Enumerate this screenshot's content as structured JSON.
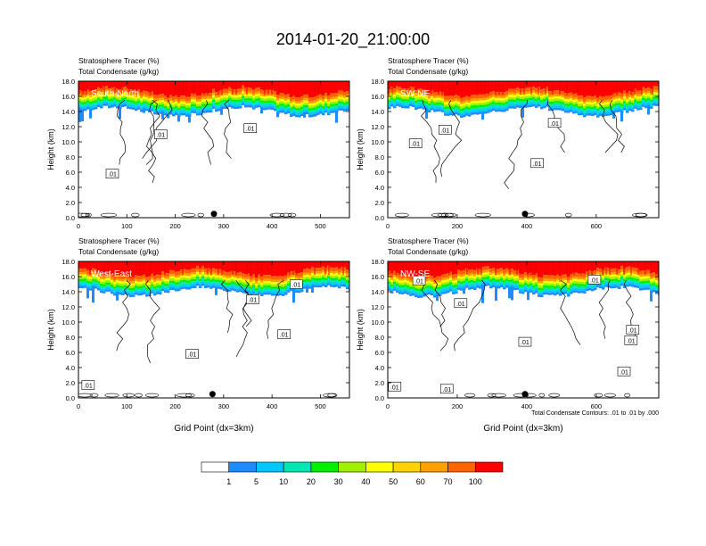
{
  "figure": {
    "title": "2014-01-20_21:00:00",
    "field_label_1": "Stratosphere Tracer   (%)",
    "field_label_2": "Total Condensate   (g/kg)",
    "ylabel": "Height (km)",
    "xlabel": "Grid Point (dx=3km)",
    "contour_note": "Total Condensate Contours: .01 to .01 by .000"
  },
  "colorbar": {
    "labels": [
      "1",
      "5",
      "10",
      "20",
      "30",
      "40",
      "50",
      "60",
      "70",
      "100"
    ],
    "colors": [
      "#ffffff",
      "#1e8cff",
      "#00c8ff",
      "#00e6b4",
      "#00f000",
      "#a0f000",
      "#ffff00",
      "#ffd200",
      "#ffa000",
      "#ff6400",
      "#ff0000"
    ]
  },
  "chart_data": [
    {
      "type": "heatmap",
      "name": "South-North",
      "ylim": [
        0,
        18
      ],
      "xlim": [
        0,
        560
      ],
      "yticks": [
        "0.0",
        "2.0",
        "4.0",
        "6.0",
        "8.0",
        "10.0",
        "12.0",
        "14.0",
        "16.0",
        "18.0"
      ],
      "xticks": [
        "0",
        "100",
        "200",
        "300",
        "400",
        "500"
      ],
      "xtick_values": [
        0,
        100,
        200,
        300,
        400,
        500
      ],
      "marker_x": 280,
      "contour_labels": [
        ".01",
        ".01",
        ".01"
      ],
      "contour_label_pos": [
        [
          170,
          11.0
        ],
        [
          355,
          11.8
        ],
        [
          70,
          5.8
        ]
      ],
      "show_xlabel": false,
      "show_note": false
    },
    {
      "type": "heatmap",
      "name": "SW-NE",
      "ylim": [
        0,
        18
      ],
      "xlim": [
        0,
        780
      ],
      "yticks": [
        "0.0",
        "2.0",
        "4.0",
        "6.0",
        "8.0",
        "10.0",
        "12.0",
        "14.0",
        "16.0",
        "18.0"
      ],
      "xticks": [
        "0",
        "200",
        "400",
        "600"
      ],
      "xtick_values": [
        0,
        200,
        400,
        600
      ],
      "marker_x": 395,
      "contour_labels": [
        ".01",
        ".01",
        ".01",
        ".01"
      ],
      "contour_label_pos": [
        [
          80,
          9.8
        ],
        [
          165,
          11.6
        ],
        [
          480,
          12.5
        ],
        [
          430,
          7.2
        ]
      ],
      "show_xlabel": false,
      "show_note": false
    },
    {
      "type": "heatmap",
      "name": "West-East",
      "ylim": [
        0,
        18
      ],
      "xlim": [
        0,
        560
      ],
      "yticks": [
        "0.0",
        "2.0",
        "4.0",
        "6.0",
        "8.0",
        "10.0",
        "12.0",
        "14.0",
        "16.0",
        "18.0"
      ],
      "xticks": [
        "0",
        "100",
        "200",
        "300",
        "400",
        "500"
      ],
      "xtick_values": [
        0,
        100,
        200,
        300,
        400,
        500
      ],
      "marker_x": 277,
      "contour_labels": [
        ".01",
        ".01",
        ".01",
        ".01",
        ".01"
      ],
      "contour_label_pos": [
        [
          450,
          15.0
        ],
        [
          360,
          13.0
        ],
        [
          425,
          8.4
        ],
        [
          235,
          5.8
        ],
        [
          20,
          1.7
        ]
      ],
      "show_xlabel": true,
      "show_note": false
    },
    {
      "type": "heatmap",
      "name": "NW-SE",
      "ylim": [
        0,
        18
      ],
      "xlim": [
        0,
        780
      ],
      "yticks": [
        "0.0",
        "2.0",
        "4.0",
        "6.0",
        "8.0",
        "10.0",
        "12.0",
        "14.0",
        "16.0",
        "18.0"
      ],
      "xticks": [
        "0",
        "200",
        "400",
        "600"
      ],
      "xtick_values": [
        0,
        200,
        400,
        600
      ],
      "marker_x": 395,
      "contour_labels": [
        ".01",
        ".01",
        ".01",
        ".01",
        ".01",
        ".01",
        ".01",
        ".01",
        ".01"
      ],
      "contour_label_pos": [
        [
          90,
          15.5
        ],
        [
          210,
          12.5
        ],
        [
          595,
          15.6
        ],
        [
          395,
          7.4
        ],
        [
          700,
          7.6
        ],
        [
          705,
          9.0
        ],
        [
          680,
          3.5
        ],
        [
          170,
          1.2
        ],
        [
          20,
          1.5
        ]
      ],
      "show_xlabel": true,
      "show_note": true
    }
  ]
}
